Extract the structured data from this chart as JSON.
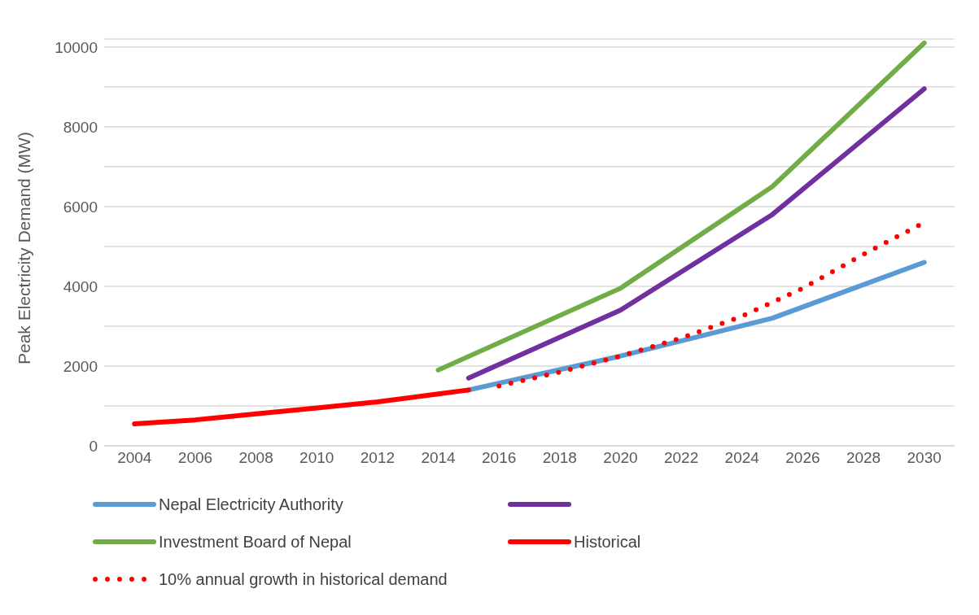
{
  "chart_data": {
    "type": "line",
    "ylabel": "Peak Electricity Demand (MW)",
    "xlim": [
      2003,
      2031
    ],
    "xticks": [
      2004,
      2006,
      2008,
      2010,
      2012,
      2014,
      2016,
      2018,
      2020,
      2022,
      2024,
      2026,
      2028,
      2030
    ],
    "ylim": [
      0,
      10200
    ],
    "yticks": [
      0,
      {
        "value": 1000,
        "label": null
      },
      2000,
      {
        "value": 3000,
        "label": null
      },
      4000,
      {
        "value": 5000,
        "label": null
      },
      6000,
      {
        "value": 7000,
        "label": null
      },
      8000,
      {
        "value": 9000,
        "label": null
      },
      10000
    ],
    "grid": "y",
    "legend": "bottom",
    "marker": "none",
    "series": [
      {
        "name": "Nepal Electricity Authority",
        "color": "#5b9bd5",
        "x": [
          2015,
          2020,
          2025,
          2030
        ],
        "values": [
          1400,
          2250,
          3200,
          4600
        ],
        "line_style": "solid"
      },
      {
        "color": "#7030a0",
        "x": [
          2015,
          2020,
          2025,
          2030
        ],
        "values": [
          1700,
          3400,
          5800,
          8950
        ],
        "line_style": "solid"
      },
      {
        "name": "Investment Board of Nepal",
        "color": "#70ad47",
        "x": [
          2014,
          2020,
          2025,
          2030
        ],
        "values": [
          1900,
          3950,
          6500,
          10100
        ],
        "line_style": "solid"
      },
      {
        "name": "Historical",
        "color": "#ff0000",
        "x": [
          2004,
          2006,
          2008,
          2010,
          2012,
          2014,
          2015
        ],
        "values": [
          550,
          650,
          800,
          950,
          1100,
          1300,
          1400
        ],
        "line_style": "solid"
      },
      {
        "name": "10% annual growth in historical demand",
        "color": "#ff0000",
        "x": [
          2016,
          2018,
          2020,
          2022,
          2024,
          2026,
          2028,
          2030
        ],
        "values": [
          1500,
          1850,
          2250,
          2700,
          3250,
          3950,
          4800,
          5600
        ],
        "line_style": "dotted"
      }
    ]
  }
}
